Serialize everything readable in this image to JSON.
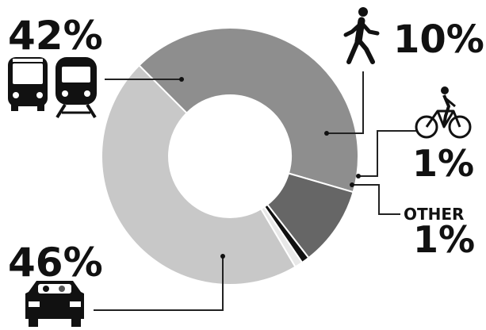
{
  "chart_data": {
    "type": "pie",
    "style": "donut",
    "title": "",
    "slices": [
      {
        "name": "transit",
        "icon": "bus-and-train-icon",
        "label": "42%",
        "value": 42,
        "color": "#8e8e8e"
      },
      {
        "name": "walk",
        "icon": "pedestrian-icon",
        "label": "10%",
        "value": 10,
        "color": "#666666"
      },
      {
        "name": "bike",
        "icon": "bicycle-icon",
        "label": "1%",
        "value": 1,
        "color": "#111111"
      },
      {
        "name": "other",
        "icon": "",
        "label": "1%",
        "text": "OTHER",
        "value": 1,
        "color": "#e8e8e8"
      },
      {
        "name": "car",
        "icon": "car-icon",
        "label": "46%",
        "value": 46,
        "color": "#c8c8c8"
      }
    ]
  }
}
